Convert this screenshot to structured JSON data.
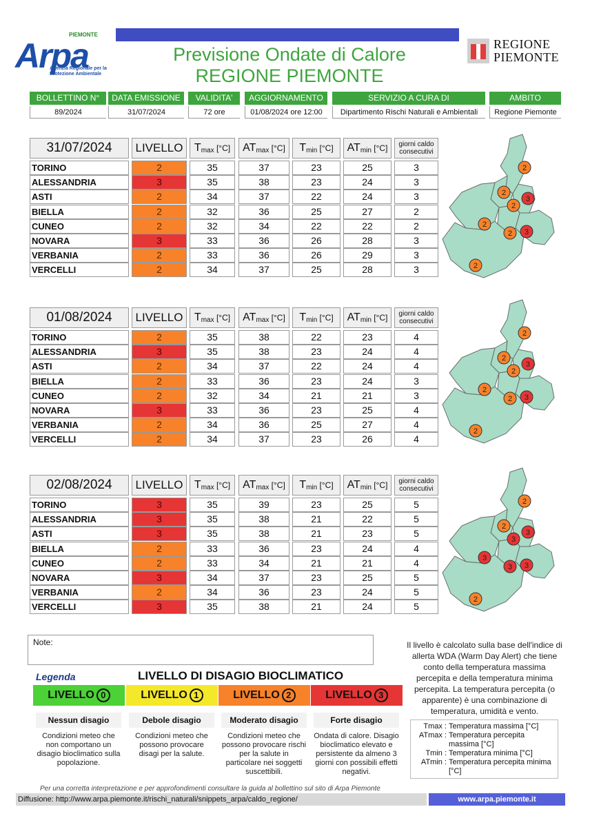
{
  "header": {
    "title_line1": "Previsione Ondate di Calore",
    "title_line2": "REGIONE PIEMONTE",
    "logo_text": "Arpa",
    "logo_top": "PIEMONTE",
    "logo_sub": "Agenzia Regionale per la Protezione Ambientale",
    "regione_line1": "REGIONE",
    "regione_line2": "PIEMONTE"
  },
  "info_bar": {
    "labels": [
      "BOLLETTINO N°",
      "DATA EMISSIONE",
      "VALIDITA'",
      "AGGIORNAMENTO",
      "SERVIZIO A CURA DI",
      "AMBITO"
    ],
    "values": [
      "89/2024",
      "31/07/2024",
      "72 ore",
      "01/08/2024 ore 12:00",
      "Dipartimento Rischi Naturali e Ambientali",
      "Regione Piemonte"
    ]
  },
  "table_headers": {
    "livello": "LIVELLO",
    "tmax": "T",
    "tmax_sub": "max",
    "atmax": "AT",
    "atmax_sub": "max",
    "tmin": "T",
    "tmin_sub": "min",
    "atmin": "AT",
    "atmin_sub": "min",
    "unit": "[°C]",
    "giorni": "giorni caldo consecutivi"
  },
  "days": [
    {
      "date": "31/07/2024",
      "rows": [
        {
          "city": "TORINO",
          "level": "2",
          "tmax": "35",
          "atmax": "37",
          "tmin": "23",
          "atmin": "25",
          "days": "3"
        },
        {
          "city": "ALESSANDRIA",
          "level": "3",
          "tmax": "35",
          "atmax": "38",
          "tmin": "23",
          "atmin": "24",
          "days": "3"
        },
        {
          "city": "ASTI",
          "level": "2",
          "tmax": "34",
          "atmax": "37",
          "tmin": "22",
          "atmin": "24",
          "days": "3"
        },
        {
          "city": "BIELLA",
          "level": "2",
          "tmax": "32",
          "atmax": "36",
          "tmin": "25",
          "atmin": "27",
          "days": "2"
        },
        {
          "city": "CUNEO",
          "level": "2",
          "tmax": "32",
          "atmax": "34",
          "tmin": "22",
          "atmin": "22",
          "days": "2"
        },
        {
          "city": "NOVARA",
          "level": "3",
          "tmax": "33",
          "atmax": "36",
          "tmin": "26",
          "atmin": "28",
          "days": "3"
        },
        {
          "city": "VERBANIA",
          "level": "2",
          "tmax": "33",
          "atmax": "36",
          "tmin": "26",
          "atmin": "29",
          "days": "3"
        },
        {
          "city": "VERCELLI",
          "level": "2",
          "tmax": "34",
          "atmax": "37",
          "tmin": "25",
          "atmin": "28",
          "days": "3"
        }
      ],
      "map": {
        "verbania": "2",
        "biella": "2",
        "novara": "3",
        "vercelli": "2",
        "torino": "2",
        "asti": "2",
        "alessandria": "3",
        "cuneo": "2"
      }
    },
    {
      "date": "01/08/2024",
      "rows": [
        {
          "city": "TORINO",
          "level": "2",
          "tmax": "35",
          "atmax": "38",
          "tmin": "22",
          "atmin": "23",
          "days": "4"
        },
        {
          "city": "ALESSANDRIA",
          "level": "3",
          "tmax": "35",
          "atmax": "38",
          "tmin": "23",
          "atmin": "24",
          "days": "4"
        },
        {
          "city": "ASTI",
          "level": "2",
          "tmax": "34",
          "atmax": "37",
          "tmin": "22",
          "atmin": "24",
          "days": "4"
        },
        {
          "city": "BIELLA",
          "level": "2",
          "tmax": "33",
          "atmax": "36",
          "tmin": "23",
          "atmin": "24",
          "days": "3"
        },
        {
          "city": "CUNEO",
          "level": "2",
          "tmax": "32",
          "atmax": "34",
          "tmin": "21",
          "atmin": "21",
          "days": "3"
        },
        {
          "city": "NOVARA",
          "level": "3",
          "tmax": "33",
          "atmax": "36",
          "tmin": "23",
          "atmin": "25",
          "days": "4"
        },
        {
          "city": "VERBANIA",
          "level": "2",
          "tmax": "34",
          "atmax": "36",
          "tmin": "25",
          "atmin": "27",
          "days": "4"
        },
        {
          "city": "VERCELLI",
          "level": "2",
          "tmax": "34",
          "atmax": "37",
          "tmin": "23",
          "atmin": "26",
          "days": "4"
        }
      ],
      "map": {
        "verbania": "2",
        "biella": "2",
        "novara": "3",
        "vercelli": "2",
        "torino": "2",
        "asti": "2",
        "alessandria": "3",
        "cuneo": "2"
      }
    },
    {
      "date": "02/08/2024",
      "rows": [
        {
          "city": "TORINO",
          "level": "3",
          "tmax": "35",
          "atmax": "39",
          "tmin": "23",
          "atmin": "25",
          "days": "5"
        },
        {
          "city": "ALESSANDRIA",
          "level": "3",
          "tmax": "35",
          "atmax": "38",
          "tmin": "21",
          "atmin": "22",
          "days": "5"
        },
        {
          "city": "ASTI",
          "level": "3",
          "tmax": "35",
          "atmax": "38",
          "tmin": "21",
          "atmin": "23",
          "days": "5"
        },
        {
          "city": "BIELLA",
          "level": "2",
          "tmax": "33",
          "atmax": "36",
          "tmin": "23",
          "atmin": "24",
          "days": "4"
        },
        {
          "city": "CUNEO",
          "level": "2",
          "tmax": "33",
          "atmax": "34",
          "tmin": "21",
          "atmin": "21",
          "days": "4"
        },
        {
          "city": "NOVARA",
          "level": "3",
          "tmax": "34",
          "atmax": "37",
          "tmin": "23",
          "atmin": "25",
          "days": "5"
        },
        {
          "city": "VERBANIA",
          "level": "2",
          "tmax": "34",
          "atmax": "36",
          "tmin": "23",
          "atmin": "24",
          "days": "5"
        },
        {
          "city": "VERCELLI",
          "level": "3",
          "tmax": "35",
          "atmax": "38",
          "tmin": "21",
          "atmin": "24",
          "days": "5"
        }
      ],
      "map": {
        "verbania": "2",
        "biella": "2",
        "novara": "3",
        "vercelli": "3",
        "torino": "3",
        "asti": "3",
        "alessandria": "3",
        "cuneo": "2"
      }
    }
  ],
  "notes_label": "Note:",
  "info_text": "Il livello è calcolato sulla base dell'indice di allerta WDA (Warm Day Alert) che tiene conto della temperatura massima percepita e della temperatura minima percepita. La temperatura percepita (o apparente) è una combinazione di temperatura, umidità e vento.",
  "legend": {
    "legenda": "Legenda",
    "title": "LIVELLO DI DISAGIO BIOCLIMATICO",
    "levels": [
      {
        "label": "LIVELLO",
        "num": "0",
        "color": "#4cd137",
        "name": "Nessun disagio",
        "desc": "Condizioni meteo che non comportano un disagio bioclimatico sulla popolazione."
      },
      {
        "label": "LIVELLO",
        "num": "1",
        "color": "#f4e82a",
        "name": "Debole disagio",
        "desc": "Condizioni meteo che possono provocare disagi per la salute."
      },
      {
        "label": "LIVELLO",
        "num": "2",
        "color": "#f7822a",
        "name": "Moderato disagio",
        "desc": "Condizioni meteo che possono provocare rischi per la salute in particolare nei soggetti suscettibili."
      },
      {
        "label": "LIVELLO",
        "num": "3",
        "color": "#e63535",
        "name": "Forte disagio",
        "desc": "Ondata di calore. Disagio bioclimatico elevato e persistente da almeno 3 giorni con possibili effetti negativi."
      }
    ]
  },
  "abbreviations": [
    {
      "k": "Tmax :",
      "v": "Temperatura massima [°C]"
    },
    {
      "k": "ATmax :",
      "v": "Temperatura percepita massima [°C]"
    },
    {
      "k": "Tmin :",
      "v": "Temperatura minima [°C]"
    },
    {
      "k": "ATmin :",
      "v": "Temperatura percepita minima [°C]"
    }
  ],
  "footnote": "Per una corretta interpretazione e per approfondimenti consultare la guida al bollettino sul sito di Arpa Piemonte",
  "diffusione": "Diffusione: http://www.arpa.piemonte.it/rischi_naturali/snippets_arpa/caldo_regione/",
  "website": "www.arpa.piemonte.it",
  "colors": {
    "green": "#3ea53e",
    "blue": "#3f4cc2",
    "level2": "#f7822a",
    "level3": "#e63535",
    "map_fill": "#a8dcc6"
  }
}
